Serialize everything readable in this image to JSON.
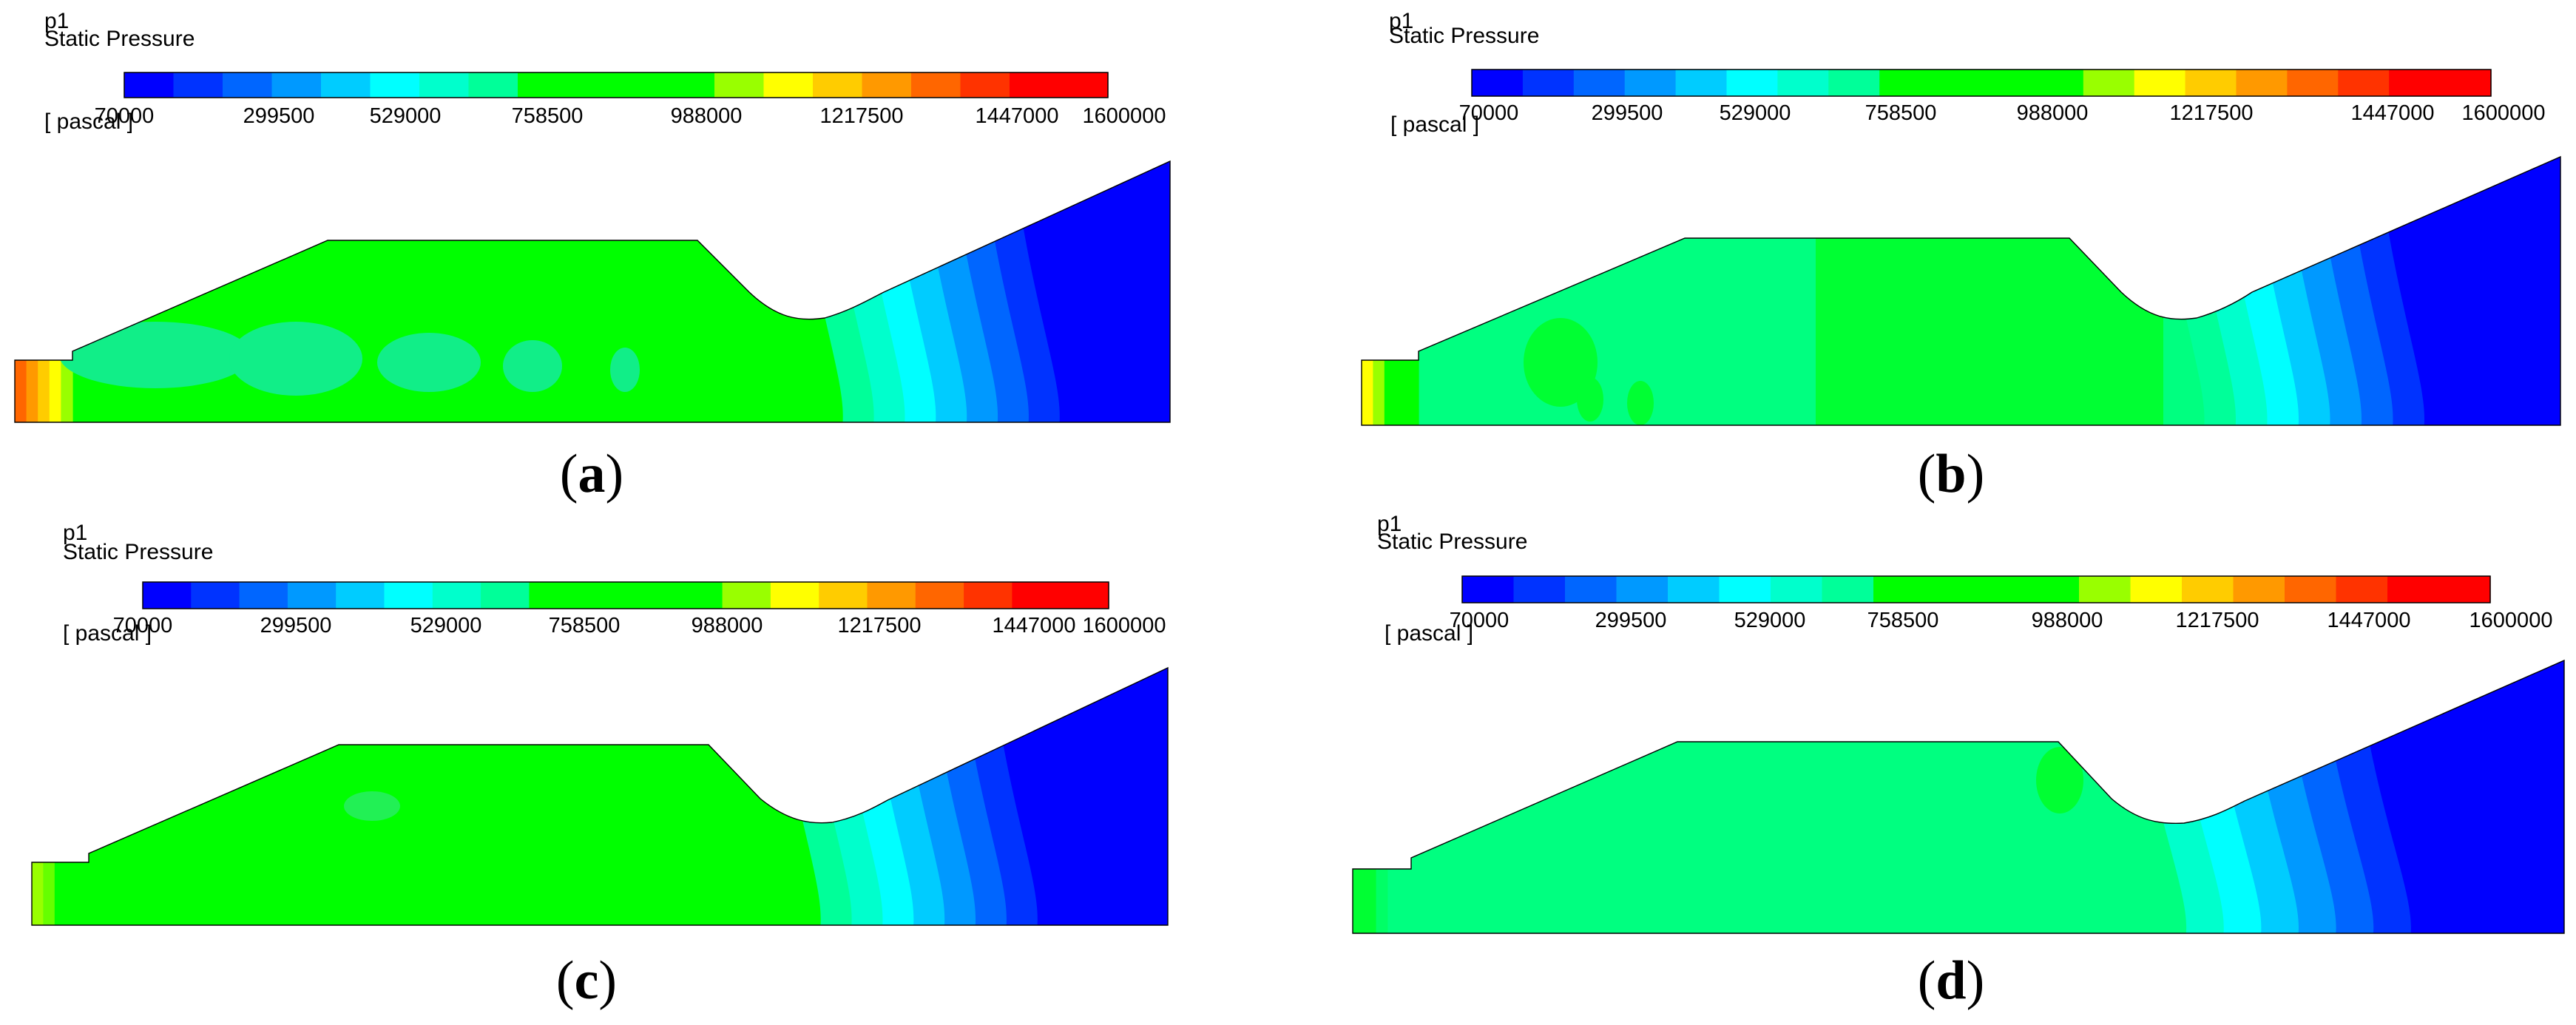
{
  "colormap": [
    "#0000ff",
    "#0033ff",
    "#0066ff",
    "#0099ff",
    "#00ccff",
    "#00ffff",
    "#00ffcc",
    "#00ff99",
    "#00ff00",
    "#00ff00",
    "#00ff00",
    "#00ff00",
    "#99ff00",
    "#ffff00",
    "#ffcc00",
    "#ff9900",
    "#ff6600",
    "#ff3300",
    "#ff0000",
    "#ff0000"
  ],
  "legend": {
    "variable": "p1",
    "quantity": "Static Pressure",
    "unit": "[ pascal ]",
    "ticks": [
      "70000",
      "299500",
      "529000",
      "758500",
      "988000",
      "1217500",
      "1447000",
      "1600000"
    ]
  },
  "panels": [
    {
      "label_open": "(",
      "label_letter": "a",
      "label_close": ")",
      "inlet": [
        "#ff6600",
        "#ff9900",
        "#ffcc00",
        "#ffff00",
        "#99ff00"
      ],
      "body_color": "#00ff00",
      "bands": [
        "#00ff99",
        "#00ffcc",
        "#00ffff",
        "#00ccff",
        "#0099ff",
        "#0066ff",
        "#0033ff",
        "#0000ff"
      ],
      "blobs": [
        {
          "color": "#11ee88"
        },
        {
          "color": "#11ee88"
        },
        {
          "color": "#11ee88"
        },
        {
          "color": "#11ee88"
        },
        {
          "color": "#11ee88"
        }
      ]
    },
    {
      "label_open": "(",
      "label_letter": "b",
      "label_close": ")",
      "inlet": [
        "#ffff00",
        "#99ff00",
        "#00ff00",
        "#00ff00",
        "#00ff00"
      ],
      "body_color": "#00ff80",
      "upper_color": "#00ff33",
      "bands": [
        "#00ff99",
        "#00ffcc",
        "#00ffff",
        "#00ccff",
        "#0099ff",
        "#0066ff",
        "#0033ff",
        "#0000ff"
      ],
      "blobs": [
        {
          "color": "#00ff33"
        },
        {
          "color": "#00ff33"
        },
        {
          "color": "#00ff33"
        }
      ]
    },
    {
      "label_open": "(",
      "label_letter": "c",
      "label_close": ")",
      "inlet": [
        "#99ff00",
        "#66ff00",
        "#00ff00",
        "#00ff00",
        "#00ff00"
      ],
      "body_color": "#00ff00",
      "bands": [
        "#00ff99",
        "#00ffcc",
        "#00ffff",
        "#00ccff",
        "#0099ff",
        "#0066ff",
        "#0033ff",
        "#0000ff"
      ],
      "blobs": [
        {
          "color": "#22f055"
        }
      ]
    },
    {
      "label_open": "(",
      "label_letter": "d",
      "label_close": ")",
      "inlet": [
        "#00ff33",
        "#00ff33",
        "#00ff66",
        "#00ff80",
        "#00ff80"
      ],
      "body_color": "#00ff80",
      "bands": [
        "#00ffcc",
        "#00ffff",
        "#00ccff",
        "#0099ff",
        "#0066ff",
        "#0033ff",
        "#0000ff",
        "#0000ff"
      ],
      "blobs": [
        {
          "color": "#00ff33"
        }
      ]
    }
  ]
}
